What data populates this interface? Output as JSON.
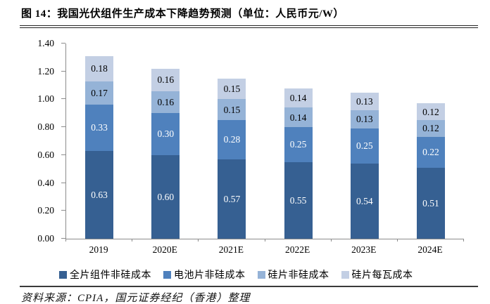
{
  "header": {
    "title": "图 14：我国光伏组件生产成本下降趋势预测（单位：人民币元/W）"
  },
  "footer": {
    "source": "资料来源：CPIA，国元证券经纪（香港）整理"
  },
  "chart_data": {
    "type": "bar",
    "stacked": true,
    "title": "我国光伏组件生产成本下降趋势预测",
    "unit": "人民币元/W",
    "categories": [
      "2019",
      "2020E",
      "2021E",
      "2022E",
      "2023E",
      "2024E"
    ],
    "series": [
      {
        "name": "全片组件非硅成本",
        "color": "#366092",
        "label_color": "#ffffff",
        "values": [
          0.63,
          0.6,
          0.57,
          0.55,
          0.54,
          0.51
        ]
      },
      {
        "name": "电池片非硅成本",
        "color": "#4f81bd",
        "label_color": "#ffffff",
        "values": [
          0.33,
          0.3,
          0.28,
          0.25,
          0.25,
          0.22
        ]
      },
      {
        "name": "硅片非硅成本",
        "color": "#95b3d7",
        "label_color": "#000000",
        "values": [
          0.17,
          0.16,
          0.15,
          0.14,
          0.13,
          0.12
        ]
      },
      {
        "name": "硅片每瓦成本",
        "color": "#c3cfe4",
        "label_color": "#000000",
        "values": [
          0.18,
          0.16,
          0.15,
          0.14,
          0.13,
          0.12
        ]
      }
    ],
    "totals": [
      1.31,
      1.22,
      1.15,
      1.08,
      1.05,
      0.97
    ],
    "ylim": [
      0.0,
      1.4
    ],
    "ytick_step": 0.2,
    "ytick_labels": [
      "0.00",
      "0.20",
      "0.40",
      "0.60",
      "0.80",
      "1.00",
      "1.20",
      "1.40"
    ],
    "grid": false,
    "legend_position": "bottom",
    "axis_color": "#8c8c8c"
  }
}
